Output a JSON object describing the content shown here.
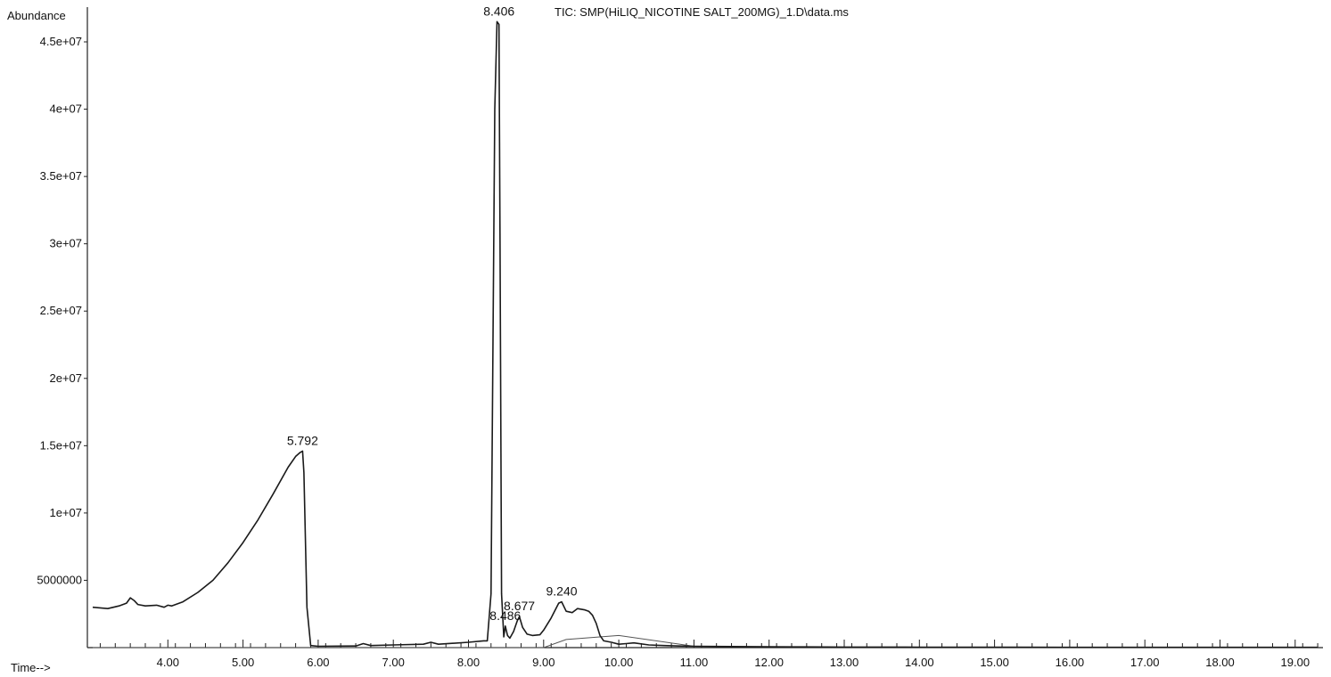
{
  "chart_data": {
    "type": "line",
    "title": "TIC: SMP(HiLIQ_NICOTINE SALT_200MG)_1.D\\data.ms",
    "ylabel": "Abundance",
    "xlabel": "Time-->",
    "xlim": [
      3.0,
      19.3
    ],
    "ylim": [
      0,
      46500000
    ],
    "x_ticks": [
      4.0,
      5.0,
      6.0,
      7.0,
      8.0,
      9.0,
      10.0,
      11.0,
      12.0,
      13.0,
      14.0,
      15.0,
      16.0,
      17.0,
      18.0,
      19.0
    ],
    "x_tick_labels": [
      "4.00",
      "5.00",
      "6.00",
      "7.00",
      "8.00",
      "9.00",
      "10.00",
      "11.00",
      "12.00",
      "13.00",
      "14.00",
      "15.00",
      "16.00",
      "17.00",
      "18.00",
      "19.00"
    ],
    "y_ticks": [
      5000000,
      10000000,
      15000000,
      20000000,
      25000000,
      30000000,
      35000000,
      40000000,
      45000000
    ],
    "y_tick_labels": [
      "5000000",
      "1e+07",
      "1.5e+07",
      "2e+07",
      "2.5e+07",
      "3e+07",
      "3.5e+07",
      "4e+07",
      "4.5e+07"
    ],
    "series": [
      {
        "x": [
          3.0,
          3.2,
          3.35,
          3.45,
          3.5,
          3.55,
          3.6,
          3.7,
          3.85,
          3.95,
          4.0,
          4.05,
          4.2,
          4.4,
          4.6,
          4.8,
          5.0,
          5.2,
          5.4,
          5.6,
          5.7,
          5.76,
          5.792,
          5.81,
          5.85,
          5.9,
          6.0,
          6.5,
          6.6,
          6.7,
          7.0,
          7.4,
          7.5,
          7.6,
          8.0,
          8.2,
          8.25,
          8.3,
          8.35,
          8.38,
          8.406,
          8.42,
          8.44,
          8.47,
          8.49,
          8.52,
          8.55,
          8.6,
          8.65,
          8.677,
          8.72,
          8.78,
          8.85,
          8.95,
          9.0,
          9.1,
          9.2,
          9.24,
          9.3,
          9.38,
          9.45,
          9.55,
          9.6,
          9.65,
          9.7,
          9.75,
          9.8,
          9.9,
          10.0,
          10.1,
          10.2,
          10.4,
          10.6,
          10.8,
          11.0,
          11.5,
          12.0,
          12.5,
          13.0,
          14.0,
          15.0,
          16.0,
          17.0,
          18.0,
          19.0,
          19.3
        ],
        "y": [
          3000000,
          2900000,
          3100000,
          3300000,
          3700000,
          3500000,
          3200000,
          3100000,
          3150000,
          3000000,
          3150000,
          3100000,
          3400000,
          4100000,
          5000000,
          6300000,
          7800000,
          9500000,
          11400000,
          13400000,
          14200000,
          14500000,
          14600000,
          13000000,
          3000000,
          150000,
          100000,
          120000,
          300000,
          150000,
          200000,
          250000,
          400000,
          250000,
          400000,
          500000,
          500000,
          4000000,
          40000000,
          46500000,
          46300000,
          30000000,
          4000000,
          800000,
          1600000,
          900000,
          700000,
          1200000,
          2000000,
          2300000,
          1500000,
          1000000,
          900000,
          950000,
          1300000,
          2200000,
          3300000,
          3400000,
          2700000,
          2600000,
          2900000,
          2800000,
          2700000,
          2400000,
          1800000,
          900000,
          500000,
          400000,
          250000,
          300000,
          350000,
          200000,
          150000,
          120000,
          100000,
          80000,
          60000,
          50000,
          40000,
          30000,
          30000,
          20000,
          20000,
          20000,
          20000,
          20000
        ]
      }
    ],
    "baselines": [
      {
        "x": [
          3.0,
          9.0,
          9.3,
          10.0,
          11.0
        ],
        "y": [
          0,
          0,
          600000,
          900000,
          100000
        ]
      }
    ],
    "peak_labels": [
      {
        "x": 5.792,
        "y": 14600000,
        "text": "5.792"
      },
      {
        "x": 8.406,
        "y": 46500000,
        "text": "8.406"
      },
      {
        "x": 8.49,
        "y": 1600000,
        "text": "8.486"
      },
      {
        "x": 8.677,
        "y": 2300000,
        "text": "8.677"
      },
      {
        "x": 9.24,
        "y": 3400000,
        "text": "9.240"
      }
    ],
    "grid": false,
    "colors": {
      "trace": "#1a1a1a",
      "axis": "#222222",
      "baseline": "#555555"
    }
  }
}
